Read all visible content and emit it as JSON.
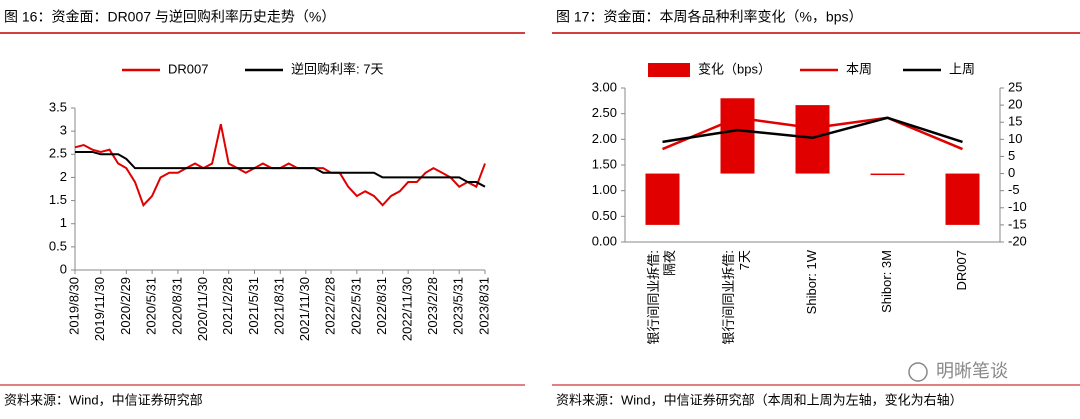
{
  "chart_data": [
    {
      "type": "line",
      "title": "图 16：资金面：DR007 与逆回购利率历史走势（%）",
      "source": "资料来源：Wind，中信证券研究部",
      "x": [
        "2019/8/30",
        "2019/9/30",
        "2019/10/31",
        "2019/11/30",
        "2019/12/31",
        "2020/1/31",
        "2020/2/29",
        "2020/3/31",
        "2020/4/30",
        "2020/5/31",
        "2020/6/30",
        "2020/7/31",
        "2020/8/31",
        "2020/9/30",
        "2020/10/31",
        "2020/11/30",
        "2020/12/31",
        "2021/1/31",
        "2021/2/28",
        "2021/3/31",
        "2021/4/30",
        "2021/5/31",
        "2021/6/30",
        "2021/7/31",
        "2021/8/31",
        "2021/9/30",
        "2021/10/31",
        "2021/11/30",
        "2021/12/31",
        "2022/1/31",
        "2022/2/28",
        "2022/3/31",
        "2022/4/30",
        "2022/5/31",
        "2022/6/30",
        "2022/7/31",
        "2022/8/31",
        "2022/9/30",
        "2022/10/31",
        "2022/11/30",
        "2022/12/31",
        "2023/1/31",
        "2023/2/28",
        "2023/3/31",
        "2023/4/30",
        "2023/5/31",
        "2023/6/30",
        "2023/7/31",
        "2023/8/31"
      ],
      "series": [
        {
          "name": "DR007",
          "color": "#e00000",
          "values": [
            2.65,
            2.7,
            2.6,
            2.55,
            2.6,
            2.3,
            2.2,
            1.9,
            1.4,
            1.6,
            2.0,
            2.1,
            2.1,
            2.2,
            2.3,
            2.2,
            2.3,
            3.15,
            2.3,
            2.2,
            2.1,
            2.2,
            2.3,
            2.2,
            2.2,
            2.3,
            2.2,
            2.2,
            2.2,
            2.2,
            2.1,
            2.1,
            1.8,
            1.6,
            1.7,
            1.6,
            1.4,
            1.6,
            1.7,
            1.9,
            1.9,
            2.1,
            2.2,
            2.1,
            2.0,
            1.8,
            1.9,
            1.8,
            2.3
          ]
        },
        {
          "name": "逆回购利率: 7天",
          "color": "#000000",
          "values": [
            2.55,
            2.55,
            2.55,
            2.5,
            2.5,
            2.5,
            2.4,
            2.2,
            2.2,
            2.2,
            2.2,
            2.2,
            2.2,
            2.2,
            2.2,
            2.2,
            2.2,
            2.2,
            2.2,
            2.2,
            2.2,
            2.2,
            2.2,
            2.2,
            2.2,
            2.2,
            2.2,
            2.2,
            2.2,
            2.1,
            2.1,
            2.1,
            2.1,
            2.1,
            2.1,
            2.1,
            2.0,
            2.0,
            2.0,
            2.0,
            2.0,
            2.0,
            2.0,
            2.0,
            2.0,
            2.0,
            1.9,
            1.9,
            1.8
          ]
        }
      ],
      "xticks": [
        "2019/8/30",
        "2019/11/30",
        "2020/2/29",
        "2020/5/31",
        "2020/8/31",
        "2020/11/30",
        "2021/2/28",
        "2021/5/31",
        "2021/8/31",
        "2021/11/30",
        "2022/2/28",
        "2022/5/31",
        "2022/8/31",
        "2022/11/30",
        "2023/2/28",
        "2023/5/31",
        "2023/8/31"
      ],
      "ylim": [
        0,
        3.5
      ],
      "yticks": [
        0,
        0.5,
        1,
        1.5,
        2,
        2.5,
        3,
        3.5
      ]
    },
    {
      "type": "combo",
      "title": "图 17：资金面：本周各品种利率变化（%，bps）",
      "source": "资料来源：Wind，中信证券研究部（本周和上周为左轴，变化为右轴）",
      "watermark": "明晰笔谈",
      "categories": [
        [
          "银行间同业拆借:",
          "隔夜"
        ],
        [
          "银行间同业拆借:",
          "7天"
        ],
        [
          "Shibor: 1W"
        ],
        [
          "Shibor: 3M"
        ],
        [
          "DR007"
        ]
      ],
      "series": [
        {
          "name": "变化（bps）",
          "type": "bar",
          "axis": "y2",
          "color": "#e00000",
          "values": [
            -15,
            22,
            20,
            -0.3,
            -15
          ]
        },
        {
          "name": "本周",
          "type": "line",
          "color": "#e00000",
          "values": [
            1.81,
            2.42,
            2.22,
            2.42,
            1.81
          ]
        },
        {
          "name": "上周",
          "type": "line",
          "color": "#000000",
          "values": [
            1.95,
            2.18,
            2.03,
            2.42,
            1.95
          ]
        }
      ],
      "ylim": [
        0,
        3
      ],
      "yticks": [
        {
          "value": 0,
          "label": "0.00"
        },
        {
          "value": 0.5,
          "label": "0.50"
        },
        {
          "value": 1,
          "label": "1.00"
        },
        {
          "value": 1.5,
          "label": "1.50"
        },
        {
          "value": 2,
          "label": "2.00"
        },
        {
          "value": 2.5,
          "label": "2.50"
        },
        {
          "value": 3,
          "label": "3.00"
        }
      ],
      "y2lim": [
        -20,
        25
      ],
      "y2ticks": [
        -20,
        -15,
        -10,
        -5,
        0,
        5,
        10,
        15,
        20,
        25
      ]
    }
  ]
}
